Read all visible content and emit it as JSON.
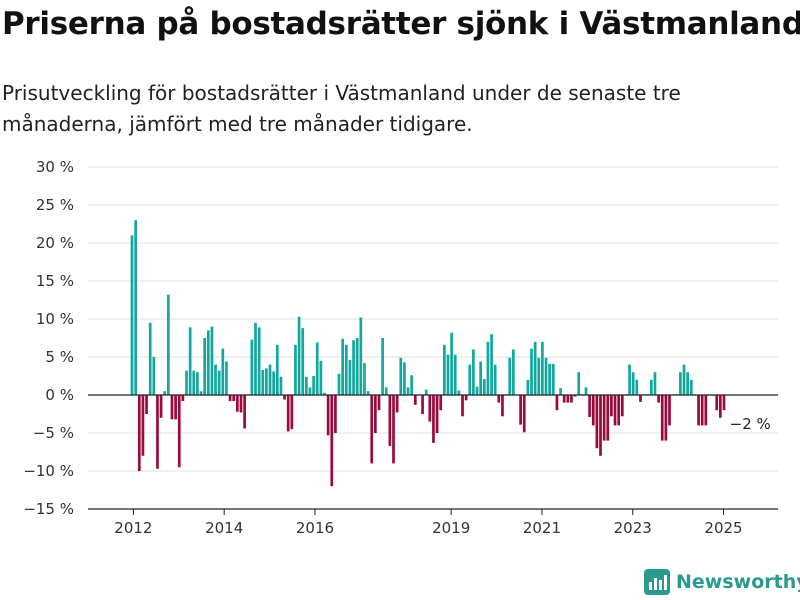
{
  "page": {
    "title": "Priserna på bostadsrätter sjönk i Västmanland",
    "subtitle": "Prisutveckling för bostadsrätter i Västmanland under de senaste tre månaderna, jämfört med tre månader tidigare.",
    "brand": "Newsworthy"
  },
  "colors": {
    "positive": "#13a89e",
    "negative": "#9b0a3c",
    "grid": "#e2e2e2",
    "axis": "#222222",
    "brand": "#2a9a8e"
  },
  "chart_data": {
    "type": "bar",
    "title": "",
    "xlabel": "",
    "ylabel": "",
    "ylim": [
      -15,
      30
    ],
    "yticks": [
      30,
      25,
      20,
      15,
      10,
      5,
      0,
      -5,
      -10,
      -15
    ],
    "ytick_labels": [
      "30 %",
      "25 %",
      "20 %",
      "15 %",
      "10 %",
      "5 %",
      "0 %",
      "−5 %",
      "−10 %",
      "−15 %"
    ],
    "xticks": [
      {
        "x": 2012.0,
        "label": "2012"
      },
      {
        "x": 2014.0,
        "label": "2014"
      },
      {
        "x": 2016.0,
        "label": "2016"
      },
      {
        "x": 2019.0,
        "label": "2019"
      },
      {
        "x": 2021.0,
        "label": "2021"
      },
      {
        "x": 2023.0,
        "label": "2023"
      },
      {
        "x": 2025.0,
        "label": "2025"
      }
    ],
    "annotation": {
      "x": 2025.4,
      "y": -2,
      "text": "−2 %"
    },
    "grid": true,
    "series": [
      {
        "points": [
          {
            "x": 2011.97,
            "y": 21
          },
          {
            "x": 2012.05,
            "y": 23
          },
          {
            "x": 2012.13,
            "y": -10
          },
          {
            "x": 2012.21,
            "y": -8
          },
          {
            "x": 2012.29,
            "y": -2.5
          },
          {
            "x": 2012.37,
            "y": 9.5
          },
          {
            "x": 2012.45,
            "y": 5
          },
          {
            "x": 2012.53,
            "y": -9.7
          },
          {
            "x": 2012.61,
            "y": -3
          },
          {
            "x": 2012.69,
            "y": 0.5
          },
          {
            "x": 2012.77,
            "y": 13.2
          },
          {
            "x": 2012.85,
            "y": -3.2
          },
          {
            "x": 2012.93,
            "y": -3.2
          },
          {
            "x": 2013.01,
            "y": -9.5
          },
          {
            "x": 2013.09,
            "y": -0.8
          },
          {
            "x": 2013.17,
            "y": 3.2
          },
          {
            "x": 2013.25,
            "y": 8.9
          },
          {
            "x": 2013.33,
            "y": 3.2
          },
          {
            "x": 2013.41,
            "y": 3
          },
          {
            "x": 2013.49,
            "y": 0.5
          },
          {
            "x": 2013.57,
            "y": 7.5
          },
          {
            "x": 2013.65,
            "y": 8.5
          },
          {
            "x": 2013.73,
            "y": 9
          },
          {
            "x": 2013.81,
            "y": 4
          },
          {
            "x": 2013.89,
            "y": 3.2
          },
          {
            "x": 2013.97,
            "y": 6.1
          },
          {
            "x": 2014.05,
            "y": 4.4
          },
          {
            "x": 2014.13,
            "y": -0.8
          },
          {
            "x": 2014.21,
            "y": -0.8
          },
          {
            "x": 2014.29,
            "y": -2.2
          },
          {
            "x": 2014.37,
            "y": -2.3
          },
          {
            "x": 2014.45,
            "y": -4.4
          },
          {
            "x": 2014.53,
            "y": 0.1
          },
          {
            "x": 2014.61,
            "y": 7.3
          },
          {
            "x": 2014.69,
            "y": 9.5
          },
          {
            "x": 2014.77,
            "y": 8.9
          },
          {
            "x": 2014.85,
            "y": 3.3
          },
          {
            "x": 2014.93,
            "y": 3.5
          },
          {
            "x": 2015.01,
            "y": 4
          },
          {
            "x": 2015.09,
            "y": 3.1
          },
          {
            "x": 2015.17,
            "y": 6.6
          },
          {
            "x": 2015.25,
            "y": 2.4
          },
          {
            "x": 2015.33,
            "y": -0.6
          },
          {
            "x": 2015.41,
            "y": -4.8
          },
          {
            "x": 2015.49,
            "y": -4.5
          },
          {
            "x": 2015.57,
            "y": 6.6
          },
          {
            "x": 2015.65,
            "y": 10.3
          },
          {
            "x": 2015.73,
            "y": 8.8
          },
          {
            "x": 2015.81,
            "y": 2.4
          },
          {
            "x": 2015.89,
            "y": 1
          },
          {
            "x": 2015.97,
            "y": 2.5
          },
          {
            "x": 2016.05,
            "y": 6.9
          },
          {
            "x": 2016.13,
            "y": 4.5
          },
          {
            "x": 2016.21,
            "y": 0.3
          },
          {
            "x": 2016.29,
            "y": -5.3
          },
          {
            "x": 2016.37,
            "y": -12
          },
          {
            "x": 2016.45,
            "y": -5
          },
          {
            "x": 2016.53,
            "y": 2.8
          },
          {
            "x": 2016.61,
            "y": 7.4
          },
          {
            "x": 2016.69,
            "y": 6.6
          },
          {
            "x": 2016.77,
            "y": 4.6
          },
          {
            "x": 2016.85,
            "y": 7.2
          },
          {
            "x": 2016.93,
            "y": 7.5
          },
          {
            "x": 2017.01,
            "y": 10.2
          },
          {
            "x": 2017.09,
            "y": 4.2
          },
          {
            "x": 2017.17,
            "y": 0.5
          },
          {
            "x": 2017.25,
            "y": -9
          },
          {
            "x": 2017.33,
            "y": -5
          },
          {
            "x": 2017.41,
            "y": -2
          },
          {
            "x": 2017.49,
            "y": 7.5
          },
          {
            "x": 2017.57,
            "y": 1
          },
          {
            "x": 2017.65,
            "y": -6.7
          },
          {
            "x": 2017.73,
            "y": -9
          },
          {
            "x": 2017.81,
            "y": -2.3
          },
          {
            "x": 2017.89,
            "y": 4.9
          },
          {
            "x": 2017.97,
            "y": 4.3
          },
          {
            "x": 2018.05,
            "y": 1
          },
          {
            "x": 2018.13,
            "y": 2.6
          },
          {
            "x": 2018.21,
            "y": -1.3
          },
          {
            "x": 2018.29,
            "y": 0.1
          },
          {
            "x": 2018.37,
            "y": -2.5
          },
          {
            "x": 2018.45,
            "y": 0.7
          },
          {
            "x": 2018.53,
            "y": -3.5
          },
          {
            "x": 2018.61,
            "y": -6.3
          },
          {
            "x": 2018.69,
            "y": -5
          },
          {
            "x": 2018.77,
            "y": -2
          },
          {
            "x": 2018.85,
            "y": 6.6
          },
          {
            "x": 2018.93,
            "y": 5.3
          },
          {
            "x": 2019.01,
            "y": 8.2
          },
          {
            "x": 2019.09,
            "y": 5.3
          },
          {
            "x": 2019.17,
            "y": 0.6
          },
          {
            "x": 2019.25,
            "y": -2.8
          },
          {
            "x": 2019.33,
            "y": -0.7
          },
          {
            "x": 2019.41,
            "y": 4
          },
          {
            "x": 2019.49,
            "y": 6
          },
          {
            "x": 2019.57,
            "y": 1.1
          },
          {
            "x": 2019.65,
            "y": 4.4
          },
          {
            "x": 2019.73,
            "y": 2.1
          },
          {
            "x": 2019.81,
            "y": 7
          },
          {
            "x": 2019.89,
            "y": 8
          },
          {
            "x": 2019.97,
            "y": 4
          },
          {
            "x": 2020.05,
            "y": -1
          },
          {
            "x": 2020.13,
            "y": -2.8
          },
          {
            "x": 2020.21,
            "y": 0.1
          },
          {
            "x": 2020.29,
            "y": 4.9
          },
          {
            "x": 2020.37,
            "y": 6
          },
          {
            "x": 2020.45,
            "y": 0.1
          },
          {
            "x": 2020.53,
            "y": -3.9
          },
          {
            "x": 2020.61,
            "y": -4.9
          },
          {
            "x": 2020.69,
            "y": 2
          },
          {
            "x": 2020.77,
            "y": 6.1
          },
          {
            "x": 2020.85,
            "y": 7
          },
          {
            "x": 2020.93,
            "y": 4.9
          },
          {
            "x": 2021.01,
            "y": 7
          },
          {
            "x": 2021.09,
            "y": 4.9
          },
          {
            "x": 2021.17,
            "y": 4.1
          },
          {
            "x": 2021.25,
            "y": 4.1
          },
          {
            "x": 2021.33,
            "y": -2
          },
          {
            "x": 2021.41,
            "y": 0.9
          },
          {
            "x": 2021.49,
            "y": -1
          },
          {
            "x": 2021.57,
            "y": -1
          },
          {
            "x": 2021.65,
            "y": -1
          },
          {
            "x": 2021.73,
            "y": -0.2
          },
          {
            "x": 2021.81,
            "y": 3
          },
          {
            "x": 2021.89,
            "y": 0.1
          },
          {
            "x": 2021.97,
            "y": 1
          },
          {
            "x": 2022.05,
            "y": -2.9
          },
          {
            "x": 2022.13,
            "y": -4
          },
          {
            "x": 2022.21,
            "y": -7
          },
          {
            "x": 2022.29,
            "y": -8
          },
          {
            "x": 2022.37,
            "y": -6
          },
          {
            "x": 2022.45,
            "y": -6
          },
          {
            "x": 2022.53,
            "y": -2.8
          },
          {
            "x": 2022.61,
            "y": -4
          },
          {
            "x": 2022.69,
            "y": -4
          },
          {
            "x": 2022.77,
            "y": -2.8
          },
          {
            "x": 2022.85,
            "y": 0.1
          },
          {
            "x": 2022.93,
            "y": 4
          },
          {
            "x": 2023.01,
            "y": 3
          },
          {
            "x": 2023.09,
            "y": 2
          },
          {
            "x": 2023.17,
            "y": -0.9
          },
          {
            "x": 2023.25,
            "y": 0.1
          },
          {
            "x": 2023.33,
            "y": 0.1
          },
          {
            "x": 2023.41,
            "y": 2
          },
          {
            "x": 2023.49,
            "y": 3
          },
          {
            "x": 2023.57,
            "y": -1
          },
          {
            "x": 2023.65,
            "y": -6
          },
          {
            "x": 2023.73,
            "y": -6
          },
          {
            "x": 2023.81,
            "y": -4
          },
          {
            "x": 2023.89,
            "y": 0.1
          },
          {
            "x": 2023.97,
            "y": 0.1
          },
          {
            "x": 2024.05,
            "y": 3
          },
          {
            "x": 2024.13,
            "y": 4
          },
          {
            "x": 2024.21,
            "y": 3
          },
          {
            "x": 2024.29,
            "y": 2
          },
          {
            "x": 2024.37,
            "y": 0.1
          },
          {
            "x": 2024.45,
            "y": -4
          },
          {
            "x": 2024.53,
            "y": -4
          },
          {
            "x": 2024.61,
            "y": -4
          },
          {
            "x": 2024.69,
            "y": 0.1
          },
          {
            "x": 2024.77,
            "y": -0.1
          },
          {
            "x": 2024.85,
            "y": -2
          },
          {
            "x": 2024.93,
            "y": -3
          },
          {
            "x": 2025.01,
            "y": -2
          }
        ]
      }
    ]
  }
}
